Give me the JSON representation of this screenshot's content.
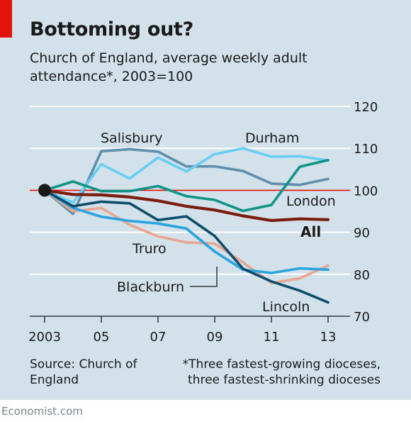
{
  "header": {
    "title": "Bottoming out?",
    "subtitle": "Church of England, average weekly adult attendance*, 2003=100"
  },
  "footer": {
    "source": "Source: Church of England",
    "footnote": "*Three fastest-growing dioceses, three fastest-shrinking dioceses",
    "brand": "Economist.com"
  },
  "colors": {
    "background": "#d3e1ea",
    "accent_red": "#e3120b",
    "Salisbury": "#5f8fad",
    "Durham": "#67cdf5",
    "London": "#0d9486",
    "All": "#7a1d0c",
    "Truro": "#e8a690",
    "Blackburn": "#2aa4df",
    "Lincoln": "#0c4d6c",
    "baseline": "#e3120b"
  },
  "chart_data": {
    "type": "line",
    "x": [
      2003,
      2004,
      2005,
      2006,
      2007,
      2008,
      2009,
      2010,
      2011,
      2012,
      2013
    ],
    "x_tick_values": [
      2003,
      2005,
      2007,
      2009,
      2011,
      2013
    ],
    "x_tick_labels": [
      "2003",
      "05",
      "07",
      "09",
      "11",
      "13"
    ],
    "ylim": [
      70,
      120
    ],
    "y_ticks": [
      70,
      80,
      90,
      100,
      110,
      120
    ],
    "grid": true,
    "reference_line": 100,
    "start_marker": {
      "x": 2003,
      "y": 100
    },
    "series": [
      {
        "name": "Salisbury",
        "values": [
          100,
          94.4,
          109.3,
          109.8,
          109.2,
          105.7,
          105.7,
          104.6,
          101.6,
          101.3,
          102.7
        ]
      },
      {
        "name": "Durham",
        "values": [
          100,
          97.1,
          106.2,
          102.8,
          107.8,
          104.5,
          108.6,
          110.0,
          108.0,
          108.1,
          107.1
        ]
      },
      {
        "name": "London",
        "values": [
          100,
          102.1,
          99.8,
          99.8,
          101.0,
          98.6,
          97.7,
          95.1,
          96.5,
          105.6,
          107.2
        ]
      },
      {
        "name": "All",
        "values": [
          100,
          99.0,
          98.9,
          98.4,
          97.5,
          96.2,
          95.3,
          93.9,
          92.8,
          93.2,
          93.0
        ]
      },
      {
        "name": "Truro",
        "values": [
          100,
          95.0,
          95.8,
          91.8,
          89.0,
          87.6,
          87.3,
          82.8,
          77.9,
          79.0,
          82.1
        ]
      },
      {
        "name": "Blackburn",
        "values": [
          100,
          95.8,
          93.7,
          92.7,
          92.1,
          90.9,
          85.4,
          81.1,
          80.3,
          81.4,
          81.1
        ]
      },
      {
        "name": "Lincoln",
        "values": [
          100,
          96.2,
          97.3,
          96.9,
          92.9,
          93.8,
          89.1,
          81.3,
          78.3,
          76.1,
          73.3
        ]
      }
    ],
    "labels": {
      "Salisbury": "Salisbury",
      "Durham": "Durham",
      "London": "London",
      "All": "All",
      "Truro": "Truro",
      "Blackburn": "Blackburn",
      "Lincoln": "Lincoln"
    }
  }
}
